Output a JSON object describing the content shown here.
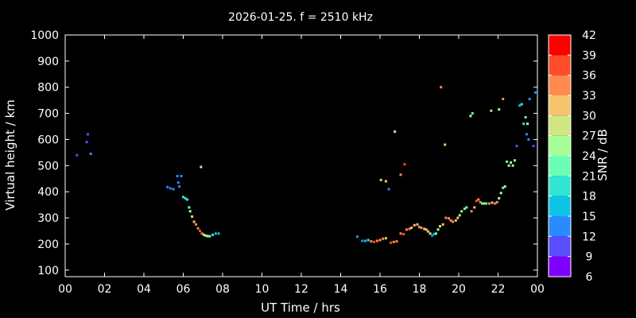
{
  "chart_data": {
    "type": "scatter",
    "title": "2026-01-25. f = 2510 kHz",
    "xlabel": "UT Time / hrs",
    "ylabel": "Virtual height / km",
    "xlim": [
      0,
      24
    ],
    "ylim": [
      75,
      1000
    ],
    "x_ticks": [
      "00",
      "02",
      "04",
      "06",
      "08",
      "10",
      "12",
      "14",
      "16",
      "18",
      "20",
      "22",
      "00"
    ],
    "y_ticks": [
      "100",
      "200",
      "300",
      "400",
      "500",
      "600",
      "700",
      "800",
      "900",
      "1000"
    ],
    "colorbar": {
      "label": "SNR / dB",
      "ticks": [
        "42",
        "39",
        "36",
        "33",
        "30",
        "27",
        "24",
        "21",
        "18",
        "15",
        "12",
        "9",
        "6"
      ],
      "bands": [
        {
          "from": 6,
          "to": 9,
          "color": "#7f00ff"
        },
        {
          "from": 9,
          "to": 12,
          "color": "#5a4dff"
        },
        {
          "from": 12,
          "to": 15,
          "color": "#2a8aff"
        },
        {
          "from": 15,
          "to": 18,
          "color": "#0dc3e6"
        },
        {
          "from": 18,
          "to": 21,
          "color": "#30e6d2"
        },
        {
          "from": 21,
          "to": 24,
          "color": "#6cffb4"
        },
        {
          "from": 24,
          "to": 27,
          "color": "#a6ff96"
        },
        {
          "from": 27,
          "to": 30,
          "color": "#cfe682"
        },
        {
          "from": 30,
          "to": 33,
          "color": "#f6c36e"
        },
        {
          "from": 33,
          "to": 36,
          "color": "#ff8a50"
        },
        {
          "from": 36,
          "to": 39,
          "color": "#ff4d2a"
        },
        {
          "from": 39,
          "to": 42,
          "color": "#ff0000"
        }
      ]
    },
    "points": [
      [
        0.6,
        540,
        9
      ],
      [
        1.1,
        590,
        9
      ],
      [
        1.15,
        620,
        9
      ],
      [
        1.3,
        545,
        12
      ],
      [
        5.2,
        418,
        12
      ],
      [
        5.35,
        413,
        12
      ],
      [
        5.5,
        410,
        12
      ],
      [
        5.7,
        460,
        12
      ],
      [
        5.75,
        435,
        12
      ],
      [
        5.8,
        420,
        12
      ],
      [
        5.9,
        460,
        12
      ],
      [
        6.0,
        380,
        18
      ],
      [
        6.1,
        375,
        18
      ],
      [
        6.2,
        370,
        18
      ],
      [
        6.3,
        340,
        21
      ],
      [
        6.35,
        325,
        24
      ],
      [
        6.45,
        305,
        27
      ],
      [
        6.55,
        285,
        30
      ],
      [
        6.65,
        275,
        33
      ],
      [
        6.75,
        260,
        33
      ],
      [
        6.85,
        250,
        36
      ],
      [
        6.95,
        240,
        33
      ],
      [
        7.05,
        235,
        27
      ],
      [
        7.15,
        232,
        24
      ],
      [
        7.25,
        230,
        24
      ],
      [
        7.35,
        230,
        21
      ],
      [
        7.5,
        235,
        18
      ],
      [
        7.65,
        240,
        15
      ],
      [
        7.8,
        240,
        15
      ],
      [
        6.9,
        495,
        24
      ],
      [
        14.85,
        228,
        12
      ],
      [
        15.1,
        212,
        12
      ],
      [
        15.25,
        212,
        15
      ],
      [
        15.4,
        215,
        18
      ],
      [
        15.55,
        210,
        33
      ],
      [
        15.7,
        208,
        36
      ],
      [
        15.85,
        212,
        33
      ],
      [
        16.0,
        215,
        33
      ],
      [
        16.15,
        220,
        33
      ],
      [
        16.3,
        222,
        30
      ],
      [
        16.55,
        205,
        36
      ],
      [
        16.7,
        208,
        33
      ],
      [
        16.85,
        210,
        33
      ],
      [
        17.05,
        240,
        33
      ],
      [
        17.2,
        238,
        36
      ],
      [
        17.35,
        255,
        33
      ],
      [
        17.5,
        258,
        33
      ],
      [
        17.6,
        262,
        30
      ],
      [
        17.75,
        272,
        30
      ],
      [
        17.9,
        275,
        30
      ],
      [
        18.0,
        265,
        33
      ],
      [
        18.1,
        262,
        33
      ],
      [
        18.25,
        258,
        30
      ],
      [
        18.35,
        255,
        30
      ],
      [
        18.45,
        248,
        30
      ],
      [
        18.55,
        240,
        27
      ],
      [
        18.65,
        232,
        12
      ],
      [
        18.75,
        238,
        15
      ],
      [
        18.85,
        240,
        21
      ],
      [
        18.95,
        255,
        24
      ],
      [
        19.05,
        268,
        27
      ],
      [
        19.2,
        275,
        30
      ],
      [
        19.35,
        300,
        33
      ],
      [
        19.5,
        298,
        33
      ],
      [
        19.6,
        290,
        33
      ],
      [
        19.7,
        285,
        33
      ],
      [
        19.85,
        290,
        30
      ],
      [
        19.95,
        300,
        30
      ],
      [
        20.05,
        310,
        27
      ],
      [
        20.15,
        325,
        24
      ],
      [
        20.3,
        335,
        21
      ],
      [
        20.4,
        340,
        21
      ],
      [
        20.65,
        325,
        33
      ],
      [
        20.8,
        340,
        30
      ],
      [
        20.9,
        365,
        36
      ],
      [
        21.0,
        370,
        33
      ],
      [
        21.1,
        360,
        33
      ],
      [
        21.2,
        355,
        24
      ],
      [
        21.3,
        355,
        21
      ],
      [
        21.4,
        355,
        21
      ],
      [
        21.55,
        355,
        33
      ],
      [
        21.7,
        358,
        30
      ],
      [
        21.85,
        355,
        33
      ],
      [
        21.95,
        360,
        33
      ],
      [
        22.05,
        375,
        24
      ],
      [
        22.15,
        395,
        24
      ],
      [
        22.25,
        415,
        21
      ],
      [
        22.35,
        420,
        24
      ],
      [
        22.45,
        515,
        21
      ],
      [
        22.55,
        500,
        24
      ],
      [
        22.65,
        512,
        24
      ],
      [
        22.75,
        500,
        24
      ],
      [
        22.85,
        520,
        24
      ],
      [
        22.95,
        575,
        9
      ],
      [
        23.1,
        730,
        15
      ],
      [
        23.2,
        735,
        18
      ],
      [
        23.3,
        660,
        18
      ],
      [
        23.4,
        685,
        21
      ],
      [
        23.45,
        620,
        12
      ],
      [
        23.5,
        660,
        24
      ],
      [
        23.55,
        600,
        12
      ],
      [
        23.6,
        755,
        12
      ],
      [
        23.8,
        575,
        9
      ],
      [
        23.9,
        780,
        12
      ],
      [
        16.05,
        445,
        30
      ],
      [
        16.3,
        440,
        30
      ],
      [
        16.45,
        410,
        12
      ],
      [
        16.75,
        630,
        24
      ],
      [
        17.05,
        465,
        33
      ],
      [
        17.25,
        505,
        36
      ],
      [
        19.1,
        800,
        33
      ],
      [
        19.3,
        580,
        30
      ],
      [
        20.6,
        690,
        24
      ],
      [
        20.7,
        700,
        21
      ],
      [
        21.65,
        710,
        30
      ],
      [
        22.05,
        715,
        24
      ],
      [
        22.25,
        755,
        33
      ]
    ]
  }
}
